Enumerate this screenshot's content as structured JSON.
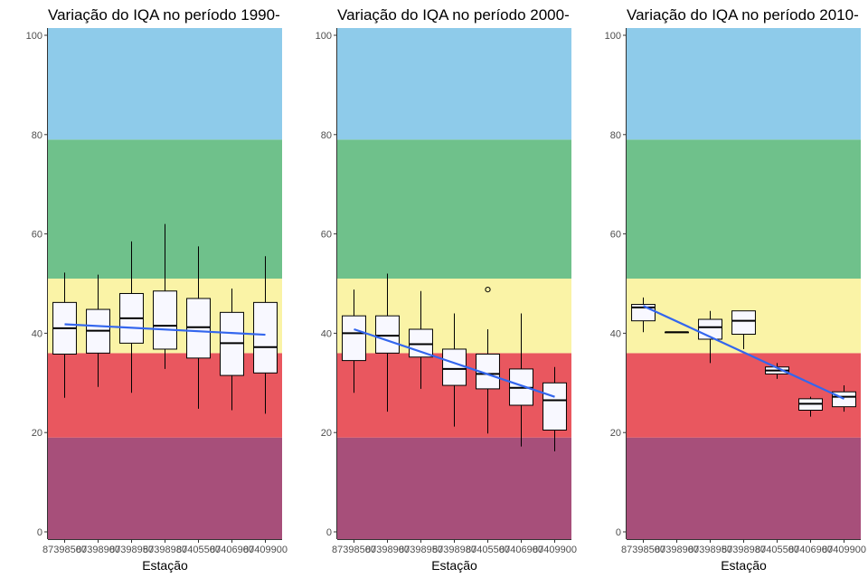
{
  "chart_data": [
    {
      "type": "boxplot",
      "title": "Variação do IQA no período 1990-",
      "xlabel": "Estação",
      "ylabel": "",
      "ylim": [
        0,
        100
      ],
      "yticks": [
        0,
        20,
        40,
        60,
        80,
        100
      ],
      "categories": [
        "87398500",
        "87398900",
        "87398950",
        "87398980",
        "87405500",
        "87406900",
        "87409900"
      ],
      "boxes": [
        {
          "low": 27,
          "q1": 35.8,
          "median": 41,
          "q3": 46.2,
          "high": 52.2,
          "outliers": []
        },
        {
          "low": 29.2,
          "q1": 36,
          "median": 40.5,
          "q3": 44.8,
          "high": 51.8,
          "outliers": []
        },
        {
          "low": 28,
          "q1": 38,
          "median": 43,
          "q3": 48,
          "high": 58.5,
          "outliers": []
        },
        {
          "low": 32.8,
          "q1": 36.8,
          "median": 41.5,
          "q3": 48.5,
          "high": 62,
          "outliers": []
        },
        {
          "low": 24.8,
          "q1": 35,
          "median": 41.2,
          "q3": 47,
          "high": 57.5,
          "outliers": []
        },
        {
          "low": 24.5,
          "q1": 31.5,
          "median": 38,
          "q3": 44.2,
          "high": 49,
          "outliers": []
        },
        {
          "low": 23.8,
          "q1": 32,
          "median": 37.2,
          "q3": 46.2,
          "high": 55.5,
          "outliers": []
        }
      ],
      "trend": {
        "start": [
          1,
          41.8
        ],
        "end": [
          7,
          39.7
        ]
      }
    },
    {
      "type": "boxplot",
      "title": "Variação do IQA no período 2000-",
      "xlabel": "Estação",
      "ylabel": "",
      "ylim": [
        0,
        100
      ],
      "yticks": [
        0,
        20,
        40,
        60,
        80,
        100
      ],
      "categories": [
        "87398500",
        "87398900",
        "87398950",
        "87398980",
        "87405500",
        "87406900",
        "87409900"
      ],
      "boxes": [
        {
          "low": 28,
          "q1": 34.5,
          "median": 40,
          "q3": 43.5,
          "high": 48.8,
          "outliers": []
        },
        {
          "low": 24.2,
          "q1": 36,
          "median": 39.5,
          "q3": 43.5,
          "high": 52,
          "outliers": []
        },
        {
          "low": 28.8,
          "q1": 35.2,
          "median": 37.8,
          "q3": 40.8,
          "high": 48.5,
          "outliers": []
        },
        {
          "low": 21.2,
          "q1": 29.5,
          "median": 32.8,
          "q3": 36.8,
          "high": 44,
          "outliers": []
        },
        {
          "low": 19.8,
          "q1": 28.8,
          "median": 31.8,
          "q3": 35.8,
          "high": 40.8,
          "outliers": [
            48.8
          ]
        },
        {
          "low": 17.2,
          "q1": 25.5,
          "median": 29,
          "q3": 32.8,
          "high": 44,
          "outliers": []
        },
        {
          "low": 16.2,
          "q1": 20.5,
          "median": 26.5,
          "q3": 30,
          "high": 33.2,
          "outliers": []
        }
      ],
      "trend": {
        "start": [
          1,
          40.8
        ],
        "end": [
          7,
          27.2
        ]
      }
    },
    {
      "type": "boxplot",
      "title": "Variação do IQA no período 2010-",
      "xlabel": "Estação",
      "ylabel": "",
      "ylim": [
        0,
        100
      ],
      "yticks": [
        0,
        20,
        40,
        60,
        80,
        100
      ],
      "categories": [
        "87398500",
        "87398900",
        "87398950",
        "87398980",
        "87405500",
        "87406900",
        "87409900"
      ],
      "boxes": [
        {
          "low": 40.2,
          "q1": 42.5,
          "median": 45.2,
          "q3": 45.8,
          "high": 47.2,
          "outliers": []
        },
        {
          "low": 40.2,
          "q1": 40.2,
          "median": 40.2,
          "q3": 40.2,
          "high": 40.2,
          "outliers": []
        },
        {
          "low": 34,
          "q1": 38.8,
          "median": 41.2,
          "q3": 42.8,
          "high": 44.5,
          "outliers": []
        },
        {
          "low": 36.8,
          "q1": 39.8,
          "median": 42.5,
          "q3": 44.5,
          "high": 44.5,
          "outliers": []
        },
        {
          "low": 30.8,
          "q1": 31.8,
          "median": 32.5,
          "q3": 33.2,
          "high": 34,
          "outliers": []
        },
        {
          "low": 23.2,
          "q1": 24.5,
          "median": 25.8,
          "q3": 26.8,
          "high": 27.2,
          "outliers": []
        },
        {
          "low": 24.2,
          "q1": 25.2,
          "median": 27.2,
          "q3": 28.2,
          "high": 29.5,
          "outliers": []
        }
      ],
      "trend": {
        "start": [
          1,
          45.5
        ],
        "end": [
          7,
          26.8
        ]
      }
    }
  ],
  "bands": [
    {
      "from": 0,
      "to": 19,
      "color": "#a74f7a"
    },
    {
      "from": 19,
      "to": 36,
      "color": "#e9575f"
    },
    {
      "from": 36,
      "to": 51,
      "color": "#faf3a6"
    },
    {
      "from": 51,
      "to": 79,
      "color": "#6fc18b"
    },
    {
      "from": 79,
      "to": 101,
      "color": "#8ecbea"
    }
  ],
  "colors": {
    "box_fill": "#f8f8ff",
    "trend": "#3366ee"
  }
}
